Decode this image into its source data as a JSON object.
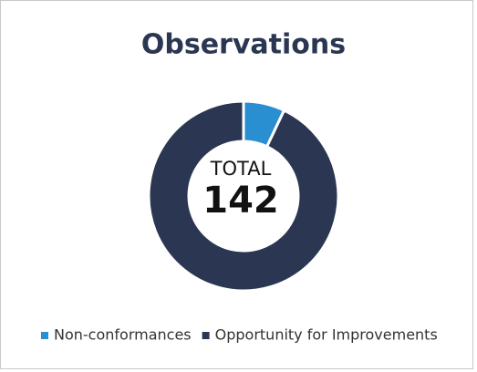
{
  "chart_data": {
    "type": "donut",
    "title": "Observations",
    "categories": [
      "Non-conformances",
      "Opportunity for Improvements"
    ],
    "values": [
      10,
      132
    ],
    "colors": [
      "#2a8fd0",
      "#2b3752"
    ],
    "center_label": "TOTAL",
    "center_value": 142,
    "legend": "bottom"
  }
}
